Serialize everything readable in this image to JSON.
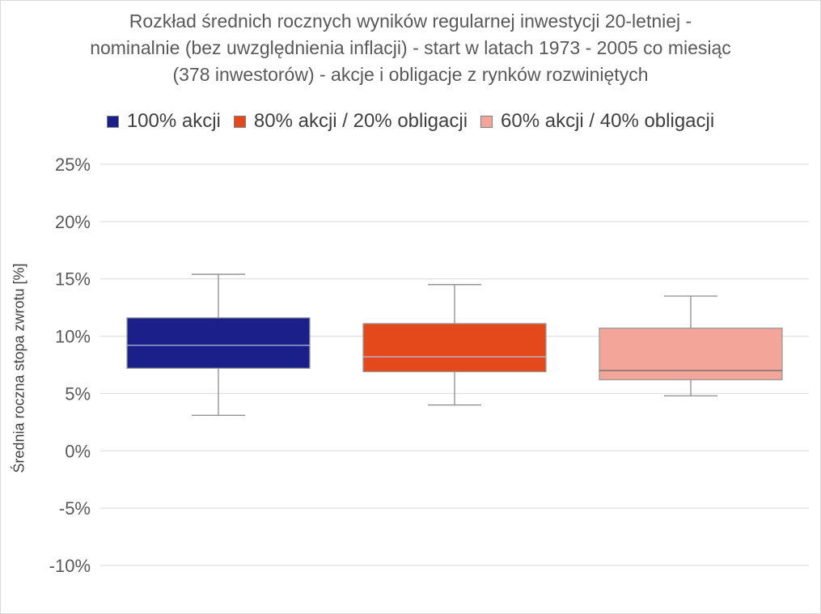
{
  "chart_data": {
    "type": "boxplot",
    "title_lines": [
      "Rozkład średnich rocznych wyników regularnej inwestycji 20-letniej -",
      "nominalnie (bez uwzględnienia inflacji) - start w latach 1973 - 2005 co miesiąc",
      "(378 inwestorów) - akcje i obligacje z rynków rozwiniętych"
    ],
    "xlabel": "",
    "ylabel": "Średnia roczna stopa zwrotu [%]",
    "ylim": [
      -10,
      25
    ],
    "yticks": [
      25,
      20,
      15,
      10,
      5,
      0,
      -5,
      -10
    ],
    "ytick_labels": [
      "25%",
      "20%",
      "15%",
      "10%",
      "5%",
      "0%",
      "-5%",
      "-10%"
    ],
    "grid": true,
    "legend_position": "top",
    "series": [
      {
        "name": "100% akcji",
        "color": "#1a1f8a",
        "whisker_low": 3.1,
        "q1": 7.2,
        "median": 9.2,
        "q3": 11.6,
        "whisker_high": 15.4
      },
      {
        "name": "80% akcji / 20% obligacji",
        "color": "#e4491b",
        "whisker_low": 4.0,
        "q1": 6.9,
        "median": 8.2,
        "q3": 11.1,
        "whisker_high": 14.5
      },
      {
        "name": "60% akcji / 40% obligacji",
        "color": "#f4a59a",
        "whisker_low": 4.8,
        "q1": 6.2,
        "median": 7.0,
        "q3": 10.7,
        "whisker_high": 13.5
      }
    ]
  }
}
